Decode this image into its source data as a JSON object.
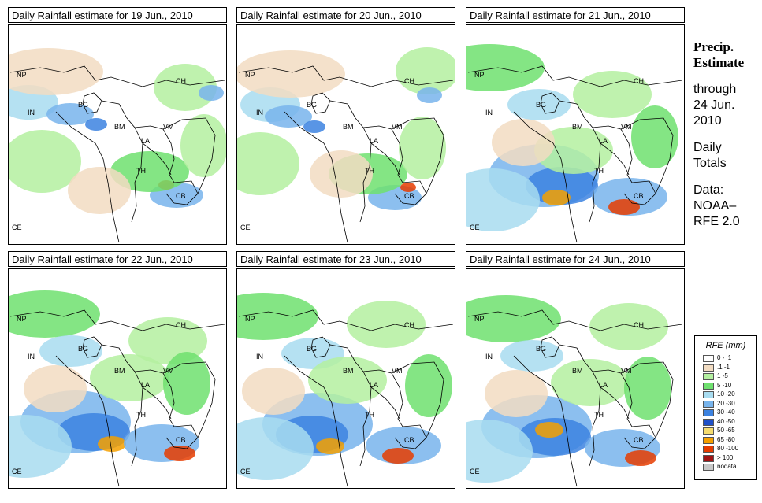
{
  "panels": [
    {
      "title": "Daily Rainfall estimate for  19 Jun., 2010",
      "intensity": 1
    },
    {
      "title": "Daily Rainfall estimate for  20 Jun., 2010",
      "intensity": 1
    },
    {
      "title": "Daily Rainfall estimate for  21 Jun., 2010",
      "intensity": 2
    },
    {
      "title": "Daily Rainfall estimate for  22 Jun., 2010",
      "intensity": 2
    },
    {
      "title": "Daily Rainfall estimate for  23 Jun., 2010",
      "intensity": 2
    },
    {
      "title": "Daily Rainfall estimate for  24 Jun., 2010",
      "intensity": 2
    }
  ],
  "country_labels": [
    "NP",
    "CH",
    "IN",
    "BG",
    "BM",
    "VM",
    "LA",
    "TH",
    "CB",
    "CE"
  ],
  "side": {
    "heading_1": "Precip.",
    "heading_2": "Estimate",
    "line_1": "through",
    "line_2": "24 Jun.",
    "line_3": "2010",
    "line_4": "Daily",
    "line_5": "Totals",
    "line_6": "Data:",
    "line_7": "NOAA–",
    "line_8": "RFE 2.0"
  },
  "legend": {
    "title": "RFE (mm)",
    "items": [
      {
        "label": "0 - .1",
        "color": "#ffffff"
      },
      {
        "label": ".1 -1",
        "color": "#f2dcc2"
      },
      {
        "label": "1 -5",
        "color": "#b4f0a0"
      },
      {
        "label": "5 -10",
        "color": "#6ee06e"
      },
      {
        "label": "10 -20",
        "color": "#a8dcf0"
      },
      {
        "label": "20 -30",
        "color": "#78b4ec"
      },
      {
        "label": "30 -40",
        "color": "#3c82e0"
      },
      {
        "label": "40 -50",
        "color": "#1e50c8"
      },
      {
        "label": "50 -65",
        "color": "#f5dc6e"
      },
      {
        "label": "65 -80",
        "color": "#f5a000"
      },
      {
        "label": "80 -100",
        "color": "#e63c00"
      },
      {
        "label": "> 100",
        "color": "#a01414"
      },
      {
        "label": "nodata",
        "color": "#c8c8c8"
      }
    ]
  }
}
